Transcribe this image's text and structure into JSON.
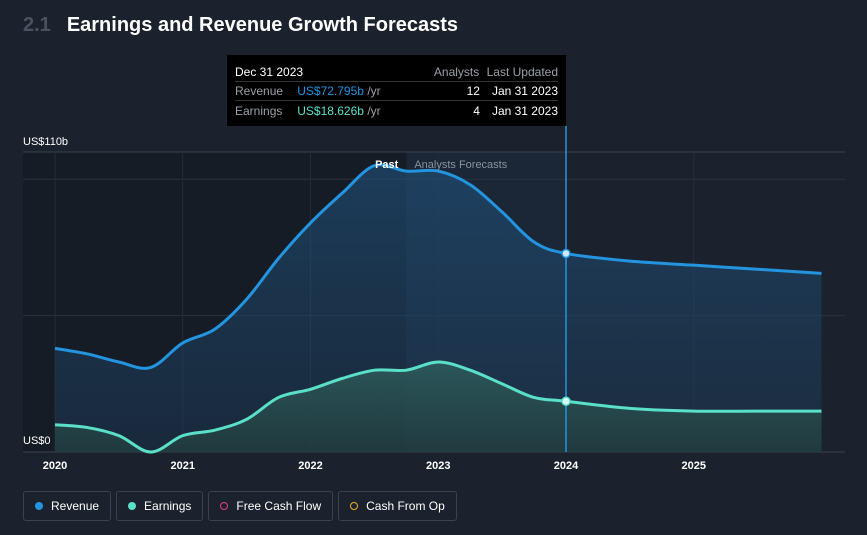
{
  "section_number": "2.1",
  "title": "Earnings and Revenue Growth Forecasts",
  "tooltip": {
    "date": "Dec 31 2023",
    "col_analysts": "Analysts",
    "col_updated": "Last Updated",
    "rows": [
      {
        "label": "Revenue",
        "value": "US$72.795b",
        "unit": "/yr",
        "analysts": "12",
        "updated": "Jan 31 2023"
      },
      {
        "label": "Earnings",
        "value": "US$18.626b",
        "unit": "/yr",
        "analysts": "4",
        "updated": "Jan 31 2023"
      }
    ]
  },
  "past_label": "Past",
  "forecast_label": "Analysts Forecasts",
  "legend": [
    {
      "label": "Revenue",
      "icon": "filled-blue"
    },
    {
      "label": "Earnings",
      "icon": "filled-teal"
    },
    {
      "label": "Free Cash Flow",
      "icon": "ring-pink"
    },
    {
      "label": "Cash From Op",
      "icon": "ring-yellow"
    }
  ],
  "colors": {
    "revenue": "#2394df",
    "earnings": "#5ae0c8",
    "background": "#1b222d"
  },
  "chart_data": {
    "type": "area",
    "y_top_label": "US$110b",
    "y_bottom_label": "US$0",
    "ylim": [
      0,
      110
    ],
    "xlim": [
      2020,
      2026
    ],
    "x_ticks": [
      2020,
      2021,
      2022,
      2023,
      2024,
      2025
    ],
    "past_end": 2022.75,
    "cursor_x": 2024,
    "series": [
      {
        "name": "Revenue",
        "points": [
          [
            2020,
            38
          ],
          [
            2020.25,
            36
          ],
          [
            2020.5,
            33
          ],
          [
            2020.75,
            31
          ],
          [
            2021,
            40
          ],
          [
            2021.25,
            45
          ],
          [
            2021.5,
            56
          ],
          [
            2021.75,
            71
          ],
          [
            2022,
            84
          ],
          [
            2022.25,
            95
          ],
          [
            2022.5,
            105
          ],
          [
            2022.75,
            103
          ],
          [
            2023,
            103
          ],
          [
            2023.25,
            98
          ],
          [
            2023.5,
            88
          ],
          [
            2023.75,
            77
          ],
          [
            2024,
            72.8
          ],
          [
            2024.5,
            70
          ],
          [
            2025,
            68.5
          ],
          [
            2025.5,
            67
          ],
          [
            2026,
            65.5
          ]
        ]
      },
      {
        "name": "Earnings",
        "points": [
          [
            2020,
            10
          ],
          [
            2020.25,
            9
          ],
          [
            2020.5,
            6
          ],
          [
            2020.75,
            0
          ],
          [
            2021,
            6
          ],
          [
            2021.25,
            8
          ],
          [
            2021.5,
            12
          ],
          [
            2021.75,
            20
          ],
          [
            2022,
            23
          ],
          [
            2022.25,
            27
          ],
          [
            2022.5,
            30
          ],
          [
            2022.75,
            30
          ],
          [
            2023,
            33
          ],
          [
            2023.25,
            30
          ],
          [
            2023.5,
            25
          ],
          [
            2023.75,
            20
          ],
          [
            2024,
            18.6
          ],
          [
            2024.5,
            16
          ],
          [
            2025,
            15
          ],
          [
            2025.5,
            15
          ],
          [
            2026,
            15
          ]
        ]
      }
    ]
  }
}
